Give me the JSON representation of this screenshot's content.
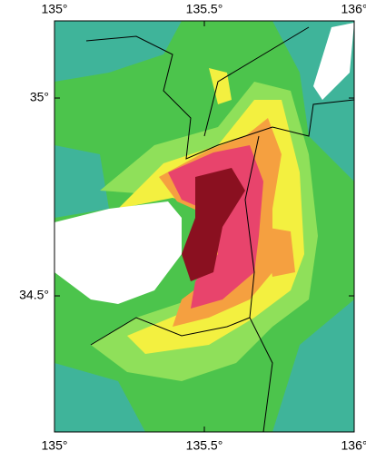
{
  "map": {
    "xlim": [
      135,
      136
    ],
    "ylim": [
      34.156,
      35.195
    ],
    "xticks": [
      {
        "value": 135,
        "label": "135°"
      },
      {
        "value": 135.5,
        "label": "135.5°"
      },
      {
        "value": 136,
        "label": "136°"
      }
    ],
    "yticks": [
      {
        "value": 35,
        "label": "35°"
      },
      {
        "value": 34.5,
        "label": "34.5°"
      }
    ]
  }
}
